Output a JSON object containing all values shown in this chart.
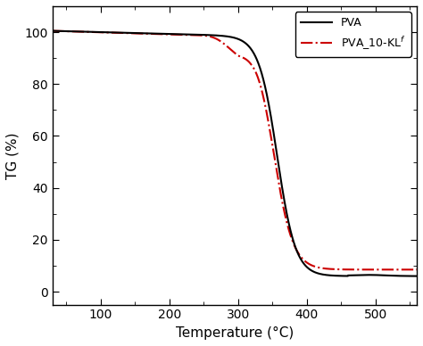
{
  "xlabel": "Temperature (°C)",
  "ylabel": "TG (%)",
  "xlim": [
    30,
    560
  ],
  "ylim": [
    -5,
    110
  ],
  "xticks": [
    100,
    200,
    300,
    400,
    500
  ],
  "yticks": [
    0,
    20,
    40,
    60,
    80,
    100
  ],
  "pva_color": "#000000",
  "pva_klf_color": "#cc0000",
  "legend_labels": [
    "PVA",
    "PVA_10-KL$^f$"
  ],
  "background_color": "#ffffff",
  "figsize": [
    4.74,
    3.88
  ],
  "dpi": 100
}
